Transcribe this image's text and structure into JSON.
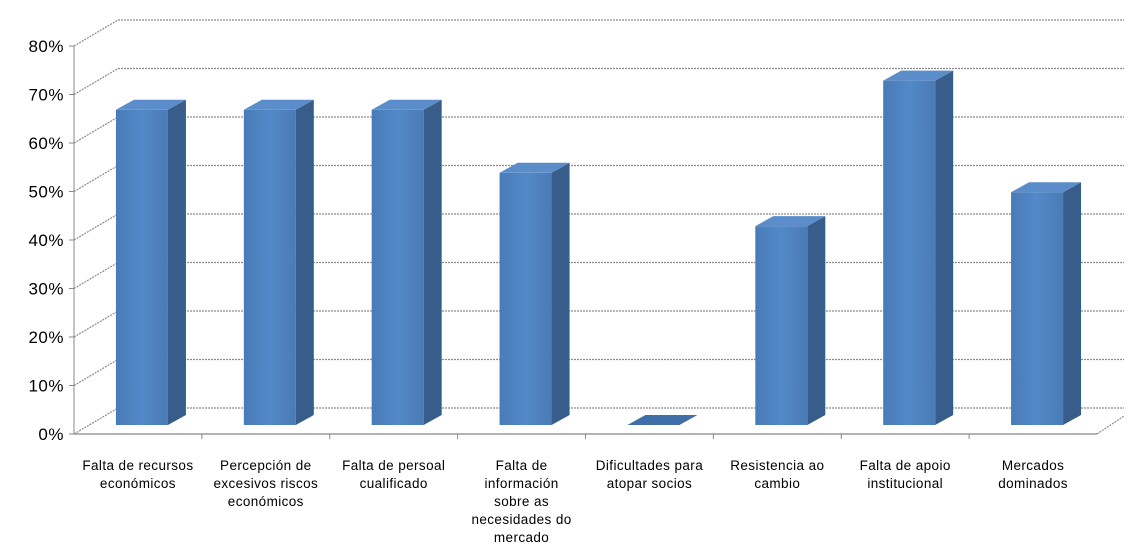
{
  "chart_data": {
    "type": "bar",
    "title": "",
    "xlabel": "",
    "ylabel": "",
    "ylim": [
      0,
      0.8
    ],
    "y_ticks": [
      "0%",
      "10%",
      "20%",
      "30%",
      "40%",
      "50%",
      "60%",
      "70%",
      "80%"
    ],
    "y_tick_values": [
      0,
      0.1,
      0.2,
      0.3,
      0.4,
      0.5,
      0.6,
      0.7,
      0.8
    ],
    "categories": [
      [
        "Falta de recursos",
        "económicos"
      ],
      [
        "Percepción de",
        "excesivos riscos",
        "económicos"
      ],
      [
        "Falta de persoal",
        "cualificado"
      ],
      [
        "Falta de",
        "información",
        "sobre as",
        "necesidades do",
        "mercado"
      ],
      [
        "Dificultades para",
        "atopar socios"
      ],
      [
        "Resistencia ao",
        "cambio"
      ],
      [
        "Falta de apoio",
        "institucional"
      ],
      [
        "Mercados",
        "dominados"
      ]
    ],
    "values": [
      0.65,
      0.65,
      0.65,
      0.52,
      0.0,
      0.41,
      0.71,
      0.48
    ],
    "grid": true,
    "legend": "none",
    "style": "3d-column",
    "colors": {
      "bar_front": "#4F81BD",
      "bar_top": "#5B8DCB",
      "bar_side": "#385D8A",
      "grid": "#8C8C8C"
    }
  }
}
